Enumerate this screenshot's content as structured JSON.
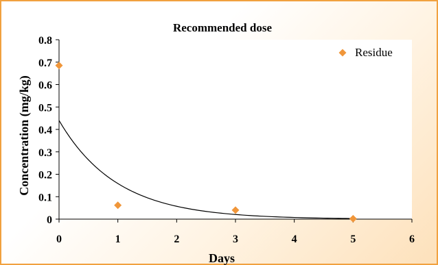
{
  "chart_data": {
    "type": "scatter",
    "title": "Recommended dose",
    "xlabel": "Days",
    "ylabel": "Concentration (mg/kg)",
    "xlim": [
      0,
      6
    ],
    "ylim": [
      0,
      0.8
    ],
    "x_ticks": [
      0,
      1,
      2,
      3,
      4,
      5,
      6
    ],
    "y_ticks": [
      0,
      0.1,
      0.2,
      0.3,
      0.4,
      0.5,
      0.6,
      0.7,
      0.8
    ],
    "grid": false,
    "legend_position": "top-right",
    "series": [
      {
        "name": "Residue",
        "color": "#f0963a",
        "marker": "diamond",
        "x": [
          0,
          1,
          3,
          5
        ],
        "y": [
          0.685,
          0.062,
          0.04,
          0.002
        ]
      }
    ],
    "trendline": {
      "type": "exponential",
      "color": "#000000",
      "a": 0.44,
      "b": -1.02,
      "x_range": [
        0,
        5
      ]
    }
  }
}
